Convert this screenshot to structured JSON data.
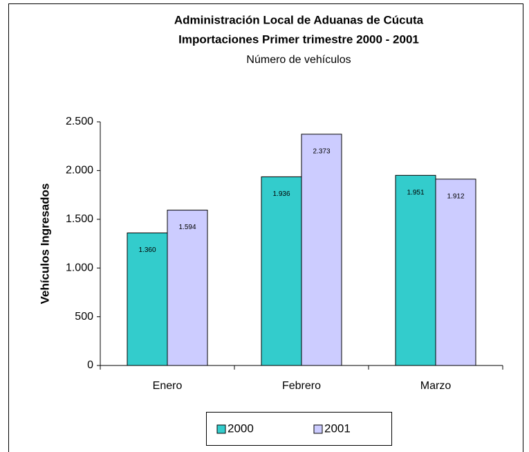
{
  "chart_data": {
    "type": "bar",
    "title": [
      "Administración Local de Aduanas de Cúcuta",
      "Importaciones Primer trimestre 2000 - 2001"
    ],
    "subtitle": "Número de vehículos",
    "y_label": "Vehículos Ingresados",
    "categories": [
      "Enero",
      "Febrero",
      "Marzo"
    ],
    "series": [
      {
        "name": "2000",
        "color": "#33cccc",
        "values": [
          1360,
          1936,
          1951
        ],
        "value_labels": [
          "1.360",
          "1.936",
          "1.951"
        ]
      },
      {
        "name": "2001",
        "color": "#ccccff",
        "values": [
          1594,
          2373,
          1912
        ],
        "value_labels": [
          "1.594",
          "2.373",
          "1.912"
        ]
      }
    ],
    "ylim": [
      0,
      2500
    ],
    "yticks": [
      0,
      500,
      {
        "value": 1000,
        "label": "1.000"
      },
      {
        "value": 1500,
        "label": "1.500"
      },
      {
        "value": 2000,
        "label": "2.000"
      },
      {
        "value": 2500,
        "label": "2.500"
      }
    ],
    "grid": false,
    "legend": "bottom"
  }
}
